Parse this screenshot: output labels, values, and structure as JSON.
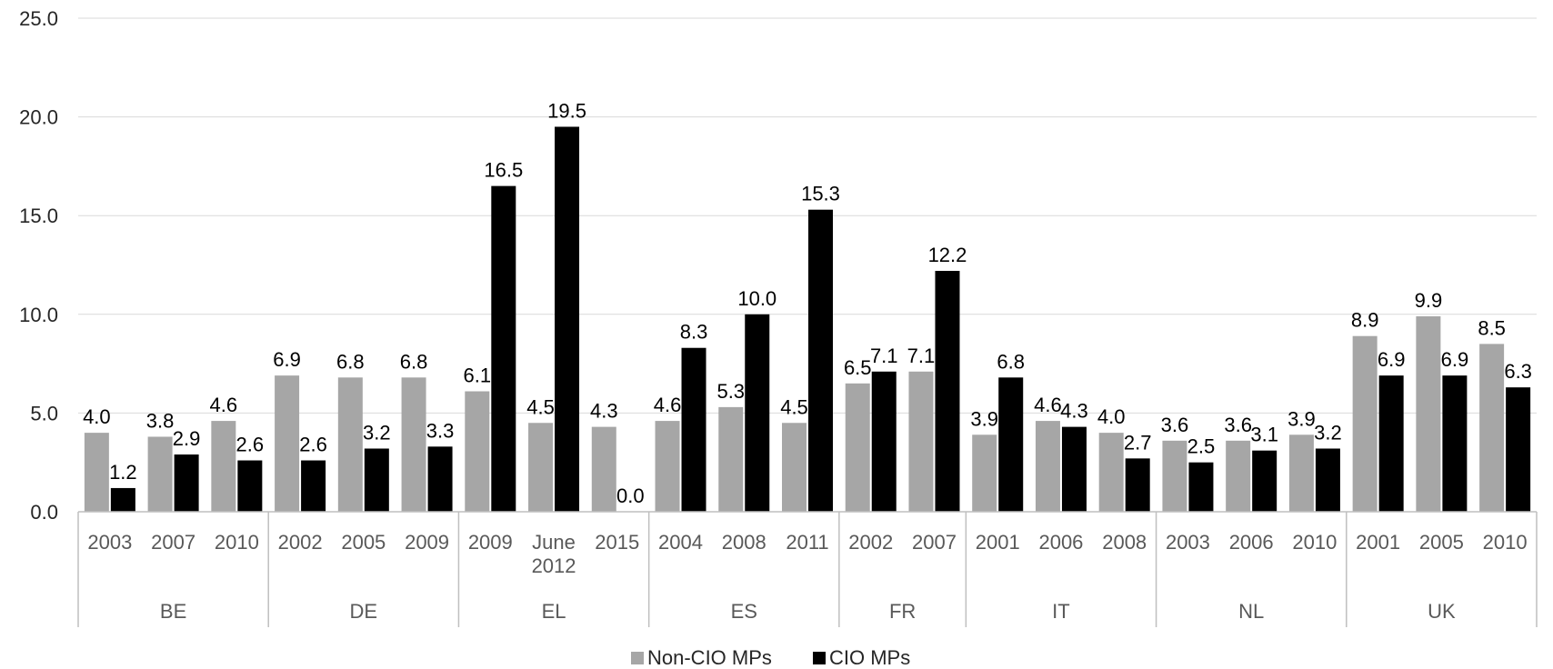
{
  "chart_data": {
    "type": "bar",
    "ylim": [
      0,
      25
    ],
    "yticks": [
      "0.0",
      "5.0",
      "10.0",
      "15.0",
      "20.0",
      "25.0"
    ],
    "grid": true,
    "legend_position": "bottom",
    "colors": {
      "Non-CIO MPs": "#a6a6a6",
      "CIO MPs": "#000000"
    },
    "groups": [
      {
        "label": "BE",
        "categories": [
          [
            "2003"
          ],
          [
            "2007"
          ],
          [
            "2010"
          ]
        ]
      },
      {
        "label": "DE",
        "categories": [
          [
            "2002"
          ],
          [
            "2005"
          ],
          [
            "2009"
          ]
        ]
      },
      {
        "label": "EL",
        "categories": [
          [
            "2009"
          ],
          [
            "June",
            "2012"
          ],
          [
            "2015"
          ]
        ]
      },
      {
        "label": "ES",
        "categories": [
          [
            "2004"
          ],
          [
            "2008"
          ],
          [
            "2011"
          ]
        ]
      },
      {
        "label": "FR",
        "categories": [
          [
            "2002"
          ],
          [
            "2007"
          ]
        ]
      },
      {
        "label": "IT",
        "categories": [
          [
            "2001"
          ],
          [
            "2006"
          ],
          [
            "2008"
          ]
        ]
      },
      {
        "label": "NL",
        "categories": [
          [
            "2003"
          ],
          [
            "2006"
          ],
          [
            "2010"
          ]
        ]
      },
      {
        "label": "UK",
        "categories": [
          [
            "2001"
          ],
          [
            "2005"
          ],
          [
            "2010"
          ]
        ]
      }
    ],
    "series": [
      {
        "name": "Non-CIO MPs",
        "values": [
          4.0,
          3.8,
          4.6,
          6.9,
          6.8,
          6.8,
          6.1,
          4.5,
          4.3,
          4.6,
          5.3,
          4.5,
          6.5,
          7.1,
          3.9,
          4.6,
          4.0,
          3.6,
          3.6,
          3.9,
          8.9,
          9.9,
          8.5
        ],
        "labels": [
          "4.0",
          "3.8",
          "4.6",
          "6.9",
          "6.8",
          "6.8",
          "6.1",
          "4.5",
          "4.3",
          "4.6",
          "5.3",
          "4.5",
          "6.5",
          "7.1",
          "3.9",
          "4.6",
          "4.0",
          "3.6",
          "3.6",
          "3.9",
          "8.9",
          "9.9",
          "8.5"
        ]
      },
      {
        "name": "CIO MPs",
        "values": [
          1.2,
          2.9,
          2.6,
          2.6,
          3.2,
          3.3,
          16.5,
          19.5,
          0.0,
          8.3,
          10.0,
          15.3,
          7.1,
          12.2,
          6.8,
          4.3,
          2.7,
          2.5,
          3.1,
          3.2,
          6.9,
          6.9,
          6.3
        ],
        "labels": [
          "1.2",
          "2.9",
          "2.6",
          "2.6",
          "3.2",
          "3.3",
          "16.5",
          "19.5",
          "0.0",
          "8.3",
          "10.0",
          "15.3",
          "7.1",
          "12.2",
          "6.8",
          "4.3",
          "2.7",
          "2.5",
          "3.1",
          "3.2",
          "6.9",
          "6.9",
          "6.3"
        ]
      }
    ]
  }
}
